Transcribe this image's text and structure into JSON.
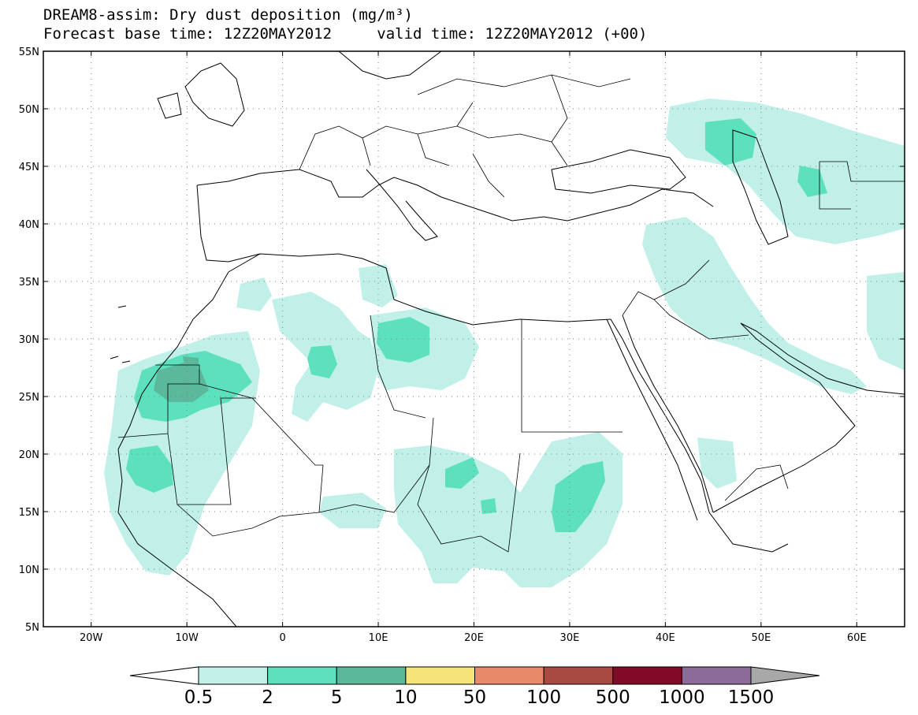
{
  "title": {
    "line1": "DREAM8-assim: Dry dust deposition (mg/m³)",
    "line2_base": "Forecast base time: 12Z20MAY2012",
    "line2_valid": "valid time: 12Z20MAY2012 (+00)"
  },
  "map": {
    "lon_range": [
      -25,
      65
    ],
    "lat_range": [
      5,
      55
    ],
    "lat_labels": [
      "5N",
      "10N",
      "15N",
      "20N",
      "25N",
      "30N",
      "35N",
      "40N",
      "45N",
      "50N",
      "55N"
    ],
    "lat_values": [
      5,
      10,
      15,
      20,
      25,
      30,
      35,
      40,
      45,
      50,
      55
    ],
    "lon_labels": [
      "20W",
      "10W",
      "0",
      "10E",
      "20E",
      "30E",
      "40E",
      "50E",
      "60E"
    ],
    "lon_values": [
      -20,
      -10,
      0,
      10,
      20,
      30,
      40,
      50,
      60
    ],
    "grid": "dotted"
  },
  "colorbar": {
    "labels": [
      "0.5",
      "2",
      "5",
      "10",
      "50",
      "100",
      "500",
      "1000",
      "1500"
    ],
    "colors": [
      "#c0f0e8",
      "#5ce0be",
      "#5cb89a",
      "#f5e47a",
      "#e8896a",
      "#a84a42",
      "#820a28",
      "#8c6a9a",
      "#a8a8a8"
    ]
  }
}
